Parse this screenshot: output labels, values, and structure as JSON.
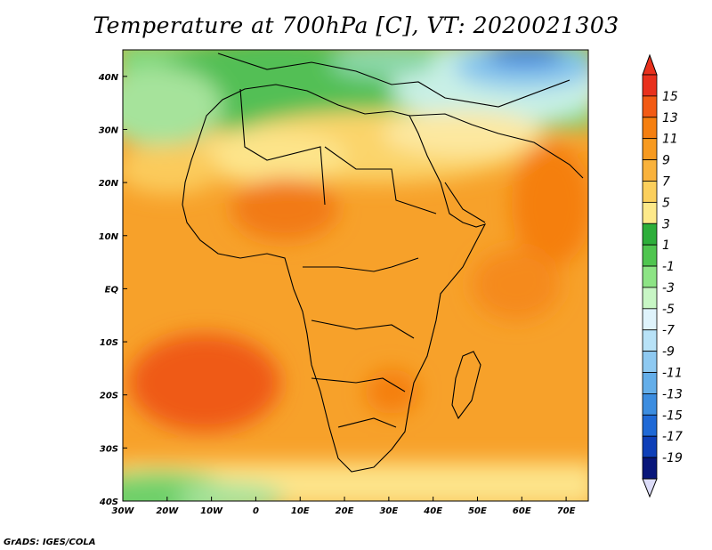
{
  "title": "Temperature at 700hPa [C], VT: 2020021303",
  "credit": "GrADS: IGES/COLA",
  "map": {
    "lon_range": [
      -30,
      75
    ],
    "lat_range": [
      -40,
      45
    ],
    "lon_ticks": [
      {
        "lon": -30,
        "label": "30W"
      },
      {
        "lon": -20,
        "label": "20W"
      },
      {
        "lon": -10,
        "label": "10W"
      },
      {
        "lon": 0,
        "label": "0"
      },
      {
        "lon": 10,
        "label": "10E"
      },
      {
        "lon": 20,
        "label": "20E"
      },
      {
        "lon": 30,
        "label": "30E"
      },
      {
        "lon": 40,
        "label": "40E"
      },
      {
        "lon": 50,
        "label": "50E"
      },
      {
        "lon": 60,
        "label": "60E"
      },
      {
        "lon": 70,
        "label": "70E"
      }
    ],
    "lat_ticks": [
      {
        "lat": 40,
        "label": "40N"
      },
      {
        "lat": 30,
        "label": "30N"
      },
      {
        "lat": 20,
        "label": "20N"
      },
      {
        "lat": 10,
        "label": "10N"
      },
      {
        "lat": 0,
        "label": "EQ"
      },
      {
        "lat": -10,
        "label": "10S"
      },
      {
        "lat": -20,
        "label": "20S"
      },
      {
        "lat": -30,
        "label": "30S"
      },
      {
        "lat": -40,
        "label": "40S"
      }
    ]
  },
  "colorbar": {
    "labels": [
      "15",
      "13",
      "11",
      "9",
      "7",
      "5",
      "3",
      "1",
      "-1",
      "-3",
      "-5",
      "-7",
      "-9",
      "-11",
      "-13",
      "-15",
      "-17",
      "-19"
    ],
    "colors": [
      "#e8301c",
      "#f25a14",
      "#f57f10",
      "#f79a20",
      "#f9b23c",
      "#fbcf5c",
      "#fde98a",
      "#2dae3a",
      "#4fc54f",
      "#8de485",
      "#c8f6c5",
      "#dff3fb",
      "#b8e2f7",
      "#8ec9f1",
      "#64aee9",
      "#3c8de0",
      "#1f69d6",
      "#0e3fb8",
      "#08167a"
    ]
  }
}
